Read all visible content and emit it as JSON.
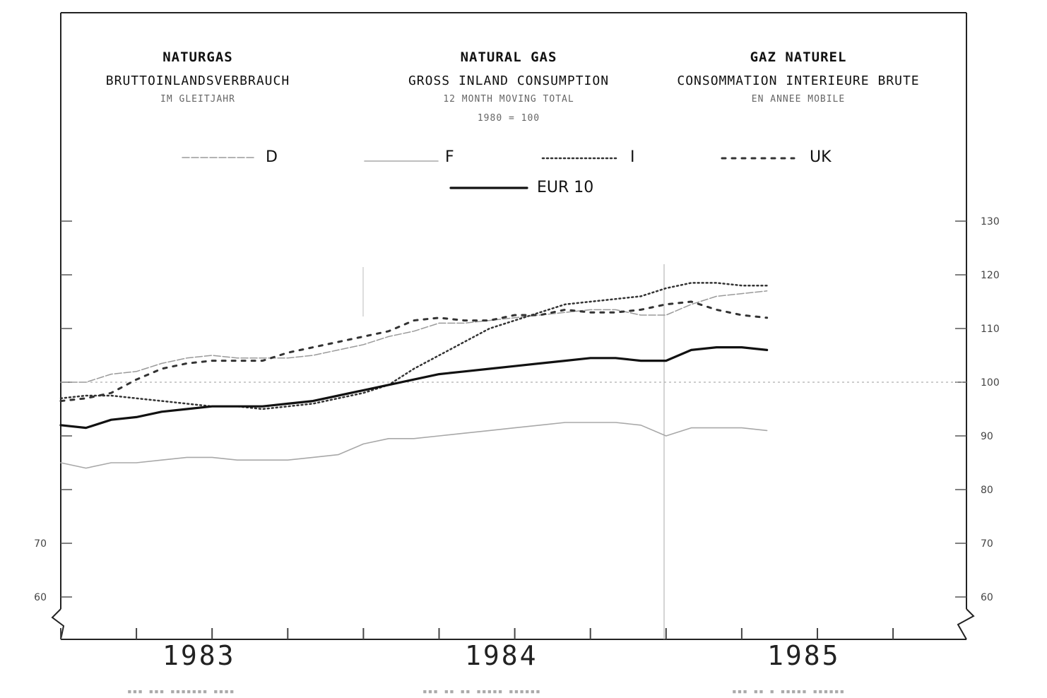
{
  "headers": {
    "de": {
      "title": "NATURGAS",
      "subtitle": "BRUTTOINLANDSVERBRAUCH",
      "note": "IM GLEITJAHR"
    },
    "en": {
      "title": "NATURAL GAS",
      "subtitle": "GROSS INLAND CONSUMPTION",
      "note": "12 MONTH MOVING TOTAL",
      "base": "1980 = 100"
    },
    "fr": {
      "title": "GAZ NATUREL",
      "subtitle": "CONSOMMATION INTERIEURE BRUTE",
      "note": "EN ANNEE MOBILE"
    }
  },
  "chart_data": {
    "type": "line",
    "title": "NATURAL GAS",
    "subtitle": "GROSS INLAND CONSUMPTION",
    "ylim": [
      60,
      130
    ],
    "yticks": [
      60,
      70,
      80,
      90,
      100,
      110,
      120,
      130
    ],
    "left_ytick_labels": [
      "60",
      "70"
    ],
    "right_ytick_labels": [
      "60",
      "70",
      "80",
      "90",
      "100",
      "110",
      "120",
      "130"
    ],
    "reference_line": 100,
    "year_labels": [
      "1983",
      "1984",
      "1985"
    ],
    "x_unit": "month index (0 = start of 1983)",
    "x": [
      0,
      1,
      2,
      3,
      4,
      5,
      6,
      7,
      8,
      9,
      10,
      11,
      12,
      13,
      14,
      15,
      16,
      17,
      18,
      19,
      20,
      21,
      22,
      23,
      24,
      25,
      26,
      27,
      28
    ],
    "series": [
      {
        "name": "D",
        "style": "dashed-light",
        "color": "#9a9a9a",
        "values": [
          100,
          100,
          101.5,
          102,
          103.5,
          104.5,
          105,
          104.5,
          104.5,
          104.5,
          105,
          106,
          107,
          108.5,
          109.5,
          111,
          111,
          111.5,
          112,
          112.5,
          113,
          113.5,
          113.5,
          112.5,
          112.5,
          114.5,
          116,
          116.5,
          117
        ]
      },
      {
        "name": "F",
        "style": "solid-light",
        "color": "#a8a8a8",
        "values": [
          85,
          84,
          85,
          85,
          85.5,
          86,
          86,
          85.5,
          85.5,
          85.5,
          86,
          86.5,
          88.5,
          89.5,
          89.5,
          90,
          90.5,
          91,
          91.5,
          92,
          92.5,
          92.5,
          92.5,
          92,
          90,
          91.5,
          91.5,
          91.5,
          91
        ]
      },
      {
        "name": "I",
        "style": "dotted",
        "color": "#333333",
        "values": [
          97,
          97.5,
          97.5,
          97,
          96.5,
          96,
          95.5,
          95.5,
          95,
          95.5,
          96,
          97,
          98,
          99.5,
          102.5,
          105,
          107.5,
          110,
          111.5,
          113,
          114.5,
          115,
          115.5,
          116,
          117.5,
          118.5,
          118.5,
          118,
          118
        ]
      },
      {
        "name": "UK",
        "style": "dash-dot",
        "color": "#333333",
        "values": [
          96.5,
          97,
          98,
          100.5,
          102.5,
          103.5,
          104,
          104,
          104,
          105.5,
          106.5,
          107.5,
          108.5,
          109.5,
          111.5,
          112,
          111.5,
          111.5,
          112.5,
          112.5,
          113.5,
          113,
          113,
          113.5,
          114.5,
          115,
          113.5,
          112.5,
          112
        ]
      },
      {
        "name": "EUR 10",
        "style": "solid-bold",
        "color": "#111111",
        "values": [
          92,
          91.5,
          93,
          93.5,
          94.5,
          95,
          95.5,
          95.5,
          95.5,
          96,
          96.5,
          97.5,
          98.5,
          99.5,
          100.5,
          101.5,
          102,
          102.5,
          103,
          103.5,
          104,
          104.5,
          104.5,
          104,
          104,
          106,
          106.5,
          106.5,
          106
        ]
      }
    ],
    "grid": false
  }
}
